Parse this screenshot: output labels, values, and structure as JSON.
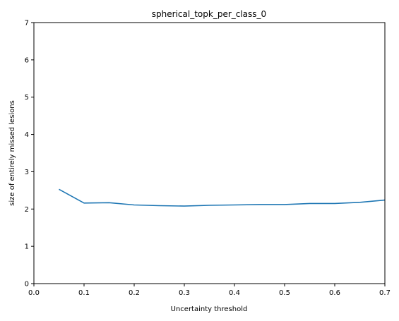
{
  "chart_data": {
    "type": "line",
    "title": "spherical_topk_per_class_0",
    "xlabel": "Uncertainty threshold",
    "ylabel": "size of entirely missed lesions",
    "xlim": [
      0.0,
      0.7
    ],
    "ylim": [
      0,
      7
    ],
    "xticks": [
      "0.0",
      "0.1",
      "0.2",
      "0.3",
      "0.4",
      "0.5",
      "0.6",
      "0.7"
    ],
    "yticks": [
      "0",
      "1",
      "2",
      "3",
      "4",
      "5",
      "6",
      "7"
    ],
    "grid": false,
    "series": [
      {
        "color": "#1f77b4",
        "x": [
          0.05,
          0.1,
          0.15,
          0.2,
          0.25,
          0.3,
          0.35,
          0.4,
          0.45,
          0.5,
          0.55,
          0.6,
          0.65,
          0.7
        ],
        "y": [
          2.53,
          2.16,
          2.17,
          2.11,
          2.09,
          2.08,
          2.1,
          2.11,
          2.12,
          2.12,
          2.15,
          2.15,
          2.18,
          2.24
        ]
      }
    ]
  }
}
